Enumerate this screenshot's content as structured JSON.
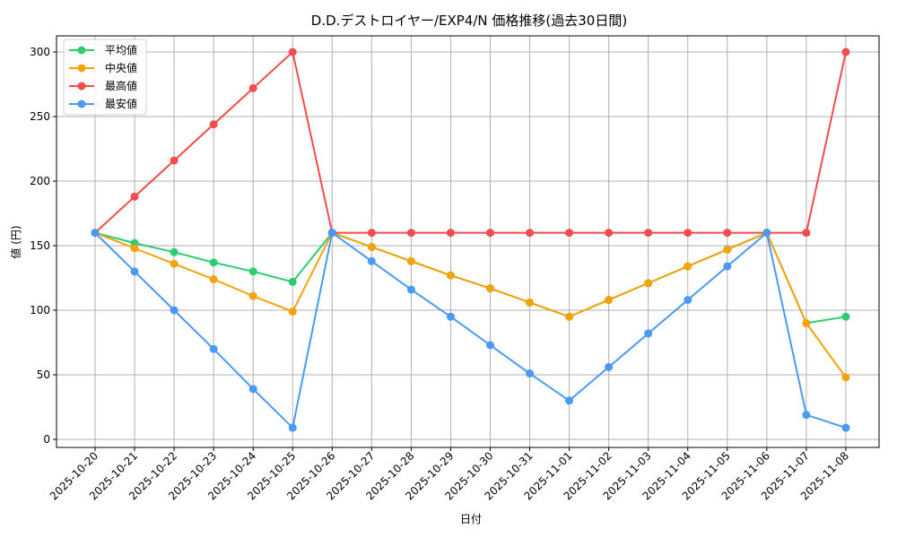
{
  "chart_data": {
    "type": "line",
    "title": "D.D.デストロイヤー/EXP4/N 価格推移(過去30日間)",
    "xlabel": "日付",
    "ylabel": "値 (円)",
    "ylim": [
      -8,
      315
    ],
    "yticks": [
      0,
      50,
      100,
      150,
      200,
      250,
      300
    ],
    "grid": true,
    "legend_position": "upper left",
    "categories": [
      "2025-10-20",
      "2025-10-21",
      "2025-10-22",
      "2025-10-23",
      "2025-10-24",
      "2025-10-25",
      "2025-10-26",
      "2025-10-27",
      "2025-10-28",
      "2025-10-29",
      "2025-10-30",
      "2025-10-31",
      "2025-11-01",
      "2025-11-02",
      "2025-11-03",
      "2025-11-04",
      "2025-11-05",
      "2025-11-06",
      "2025-11-07",
      "2025-11-08"
    ],
    "series": [
      {
        "name": "平均値",
        "color": "#2ecc71",
        "values": [
          160,
          152,
          145,
          137,
          130,
          122,
          160,
          149,
          138,
          127,
          117,
          106,
          95,
          108,
          121,
          134,
          147,
          160,
          90,
          95
        ]
      },
      {
        "name": "中央値",
        "color": "#f5a30a",
        "values": [
          160,
          148,
          136,
          124,
          111,
          99,
          160,
          149,
          138,
          127,
          117,
          106,
          95,
          108,
          121,
          134,
          147,
          160,
          90,
          48
        ]
      },
      {
        "name": "最高値",
        "color": "#f24c4c",
        "values": [
          160,
          188,
          216,
          244,
          272,
          300,
          160,
          160,
          160,
          160,
          160,
          160,
          160,
          160,
          160,
          160,
          160,
          160,
          160,
          300
        ]
      },
      {
        "name": "最安値",
        "color": "#4a9af5",
        "values": [
          160,
          130,
          100,
          70,
          39,
          9,
          160,
          138,
          116,
          95,
          73,
          51,
          30,
          56,
          82,
          108,
          134,
          160,
          19,
          9
        ]
      }
    ]
  }
}
